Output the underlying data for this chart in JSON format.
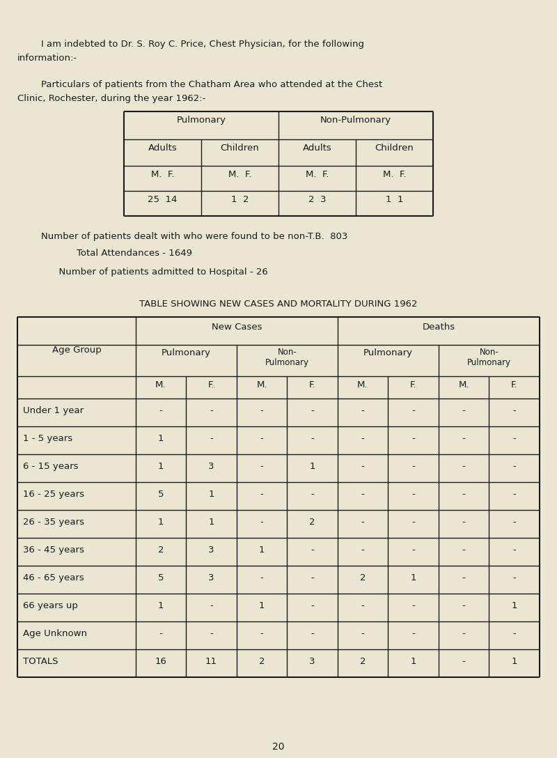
{
  "bg_color": "#eae6d2",
  "text_color": "#1a1a1a",
  "font_family": "Courier New",
  "page_number": "20",
  "intro_line1": "        I am indebted to Dr. S. Roy C. Price, Chest Physician, for the following",
  "intro_line2": "information:-",
  "particulars_line1": "        Particulars of patients from the Chatham Area who attended at the Chest",
  "particulars_line2": "Clinic, Rochester, during the year 1962:-",
  "stat1": "        Number of patients dealt with who were found to be non-T.B.  803",
  "stat2": "                    Total Attendances - 1649",
  "stat3": "              Number of patients admitted to Hospital - 26",
  "table2_title": "TABLE SHOWING NEW CASES AND MORTALITY DURING 1962",
  "table2": {
    "age_groups": [
      "Under 1 year",
      "1 - 5 years",
      "6 - 15 years",
      "16 - 25 years",
      "26 - 35 years",
      "36 - 45 years",
      "46 - 65 years",
      "66 years up",
      "Age Unknown",
      "TOTALS"
    ],
    "new_pulm_m": [
      "-",
      "1",
      "1",
      "5",
      "1",
      "2",
      "5",
      "1",
      "-",
      "16"
    ],
    "new_pulm_f": [
      "-",
      "-",
      "3",
      "1",
      "1",
      "3",
      "3",
      "-",
      "-",
      "11"
    ],
    "new_nonp_m": [
      "-",
      "-",
      "-",
      "-",
      "-",
      "1",
      "-",
      "1",
      "-",
      "2"
    ],
    "new_nonp_f": [
      "-",
      "-",
      "1",
      "-",
      "2",
      "-",
      "-",
      "-",
      "-",
      "3"
    ],
    "dth_pulm_m": [
      "-",
      "-",
      "-",
      "-",
      "-",
      "-",
      "2",
      "-",
      "-",
      "2"
    ],
    "dth_pulm_f": [
      "-",
      "-",
      "-",
      "-",
      "-",
      "-",
      "1",
      "-",
      "-",
      "1"
    ],
    "dth_nonp_m": [
      "-",
      "-",
      "-",
      "-",
      "-",
      "-",
      "-",
      "-",
      "-",
      "-"
    ],
    "dth_nonp_f": [
      "-",
      "-",
      "-",
      "-",
      "-",
      "-",
      "-",
      "1",
      "-",
      "1"
    ]
  }
}
